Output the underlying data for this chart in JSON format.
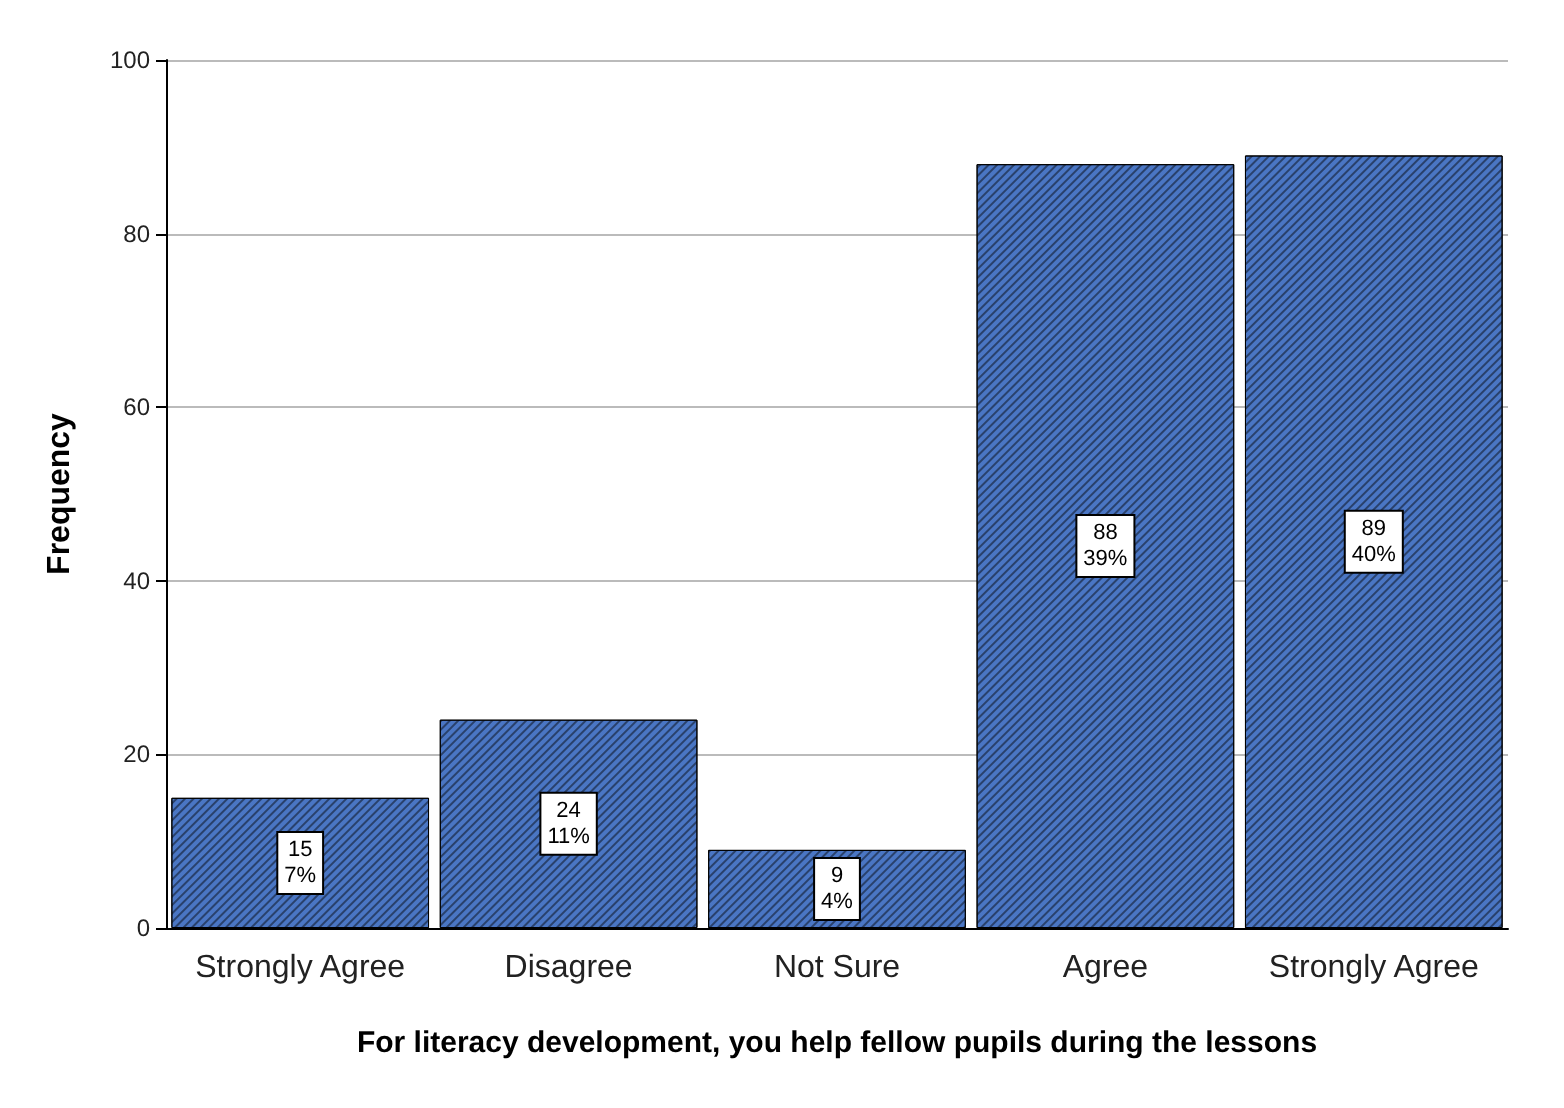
{
  "chart_data": {
    "type": "bar",
    "xlabel": "For literacy development, you help fellow pupils during the lessons",
    "ylabel": "Frequency",
    "categories": [
      "Strongly Agree",
      "Disagree",
      "Not Sure",
      "Agree",
      "Strongly Agree"
    ],
    "values": [
      15,
      24,
      9,
      88,
      89
    ],
    "value_labels": [
      "15\n7%",
      "24\n11%",
      "9\n4%",
      "88\n39%",
      "89\n40%"
    ],
    "color": "#4a76c4",
    "ylim": [
      0,
      100
    ],
    "yticks": [
      0,
      20,
      40,
      60,
      80,
      100
    ],
    "grid": "y"
  }
}
